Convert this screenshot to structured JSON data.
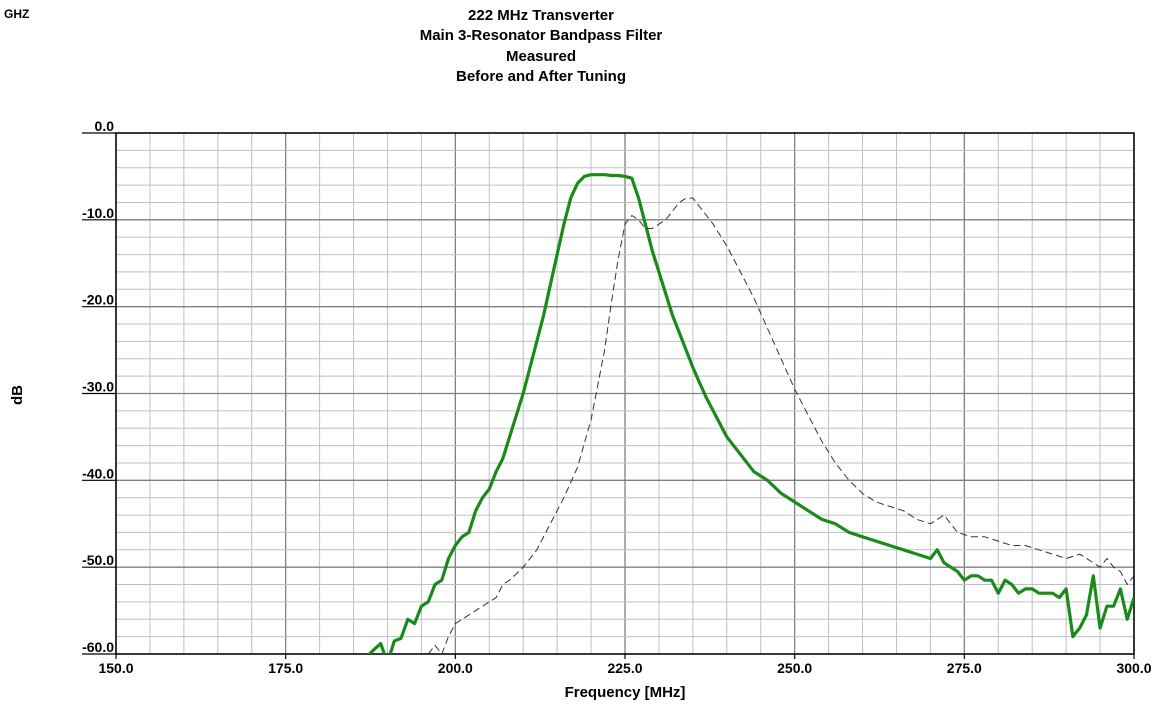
{
  "corner_label": "GHZ",
  "chart_data": {
    "type": "line",
    "title_lines": [
      "222 MHz Transverter",
      "Main 3-Resonator Bandpass Filter",
      "Measured",
      "Before and After Tuning"
    ],
    "xlabel": "Frequency [MHz]",
    "ylabel": "dB",
    "xlim": [
      150,
      300
    ],
    "ylim": [
      -60,
      0
    ],
    "grid": true,
    "x_tick_labels": [
      "150.0",
      "175.0",
      "200.0",
      "225.0",
      "250.0",
      "275.0",
      "300.0"
    ],
    "y_tick_labels": [
      "0.0",
      "-10.0",
      "-20.0",
      "-30.0",
      "-40.0",
      "-50.0",
      "-60.0"
    ],
    "colors": {
      "after": "#1a8a1a",
      "before": "#333333",
      "grid": "#c0c0c0",
      "major_grid": "#808080"
    },
    "series": [
      {
        "style": "solid",
        "x": [
          186,
          188,
          189,
          190,
          191,
          192,
          193,
          194,
          195,
          196,
          197,
          198,
          199,
          200,
          201,
          202,
          203,
          204,
          205,
          206,
          207,
          208,
          209,
          210,
          211,
          212,
          213,
          214,
          215,
          216,
          217,
          218,
          219,
          220,
          221,
          222,
          223,
          224,
          225,
          226,
          227,
          228,
          229,
          230,
          231,
          232,
          233,
          234,
          235,
          236,
          237,
          238,
          239,
          240,
          242,
          244,
          246,
          248,
          250,
          252,
          254,
          256,
          258,
          260,
          262,
          264,
          266,
          268,
          270,
          271,
          272,
          273,
          274,
          275,
          276,
          277,
          278,
          279,
          280,
          281,
          282,
          283,
          284,
          285,
          286,
          287,
          288,
          289,
          290,
          291,
          292,
          293,
          294,
          295,
          296,
          297,
          298,
          299,
          300
        ],
        "values": [
          -61,
          -59.5,
          -58.8,
          -61,
          -58.5,
          -58.2,
          -56,
          -56.5,
          -54.5,
          -54,
          -52,
          -51.5,
          -49,
          -47.5,
          -46.5,
          -46,
          -43.5,
          -42,
          -41,
          -39,
          -37.5,
          -35,
          -32.5,
          -30,
          -27,
          -24,
          -21,
          -17.5,
          -14,
          -10.5,
          -7.5,
          -5.8,
          -5,
          -4.8,
          -4.8,
          -4.8,
          -4.9,
          -4.9,
          -5,
          -5.2,
          -7.5,
          -10.5,
          -13.5,
          -16,
          -18.5,
          -21,
          -23,
          -25,
          -27,
          -28.8,
          -30.5,
          -32,
          -33.5,
          -35,
          -37,
          -39,
          -40,
          -41.5,
          -42.5,
          -43.5,
          -44.5,
          -45,
          -46,
          -46.5,
          -47,
          -47.5,
          -48,
          -48.5,
          -49,
          -48,
          -49.5,
          -50,
          -50.5,
          -51.5,
          -51,
          -51,
          -51.5,
          -51.5,
          -53,
          -51.5,
          -52,
          -53,
          -52.5,
          -52.5,
          -53,
          -53,
          -53,
          -53.5,
          -52.5,
          -58,
          -57,
          -55.5,
          -51,
          -57,
          -54.5,
          -54.5,
          -52.5,
          -56,
          -53.5
        ]
      },
      {
        "style": "dashed",
        "x": [
          195,
          197,
          198,
          199,
          200,
          202,
          204,
          206,
          207,
          208,
          210,
          212,
          214,
          216,
          218,
          220,
          222,
          223,
          224,
          225,
          226,
          227,
          228,
          229,
          230,
          231,
          232,
          233,
          234,
          235,
          236,
          238,
          240,
          242,
          244,
          246,
          248,
          250,
          252,
          254,
          256,
          258,
          260,
          262,
          264,
          266,
          268,
          270,
          272,
          274,
          276,
          278,
          280,
          282,
          284,
          286,
          288,
          290,
          292,
          294,
          295,
          296,
          297,
          298,
          299,
          300
        ],
        "values": [
          -61,
          -59,
          -60,
          -58,
          -56.5,
          -55.5,
          -54.5,
          -53.5,
          -52,
          -51.5,
          -50,
          -48,
          -45,
          -42,
          -38.5,
          -33,
          -25,
          -19.5,
          -14.5,
          -10.5,
          -9.5,
          -10,
          -11,
          -11,
          -10.5,
          -10,
          -9,
          -8,
          -7.5,
          -7.5,
          -8.5,
          -10.5,
          -13,
          -16,
          -19,
          -22.5,
          -26,
          -29.5,
          -32.5,
          -35.5,
          -38,
          -40,
          -41.5,
          -42.5,
          -43,
          -43.5,
          -44.5,
          -45,
          -44,
          -46,
          -46.5,
          -46.5,
          -47,
          -47.5,
          -47.5,
          -48,
          -48.5,
          -49,
          -48.5,
          -49.5,
          -50,
          -49,
          -50,
          -50.5,
          -52,
          -51
        ]
      }
    ]
  }
}
